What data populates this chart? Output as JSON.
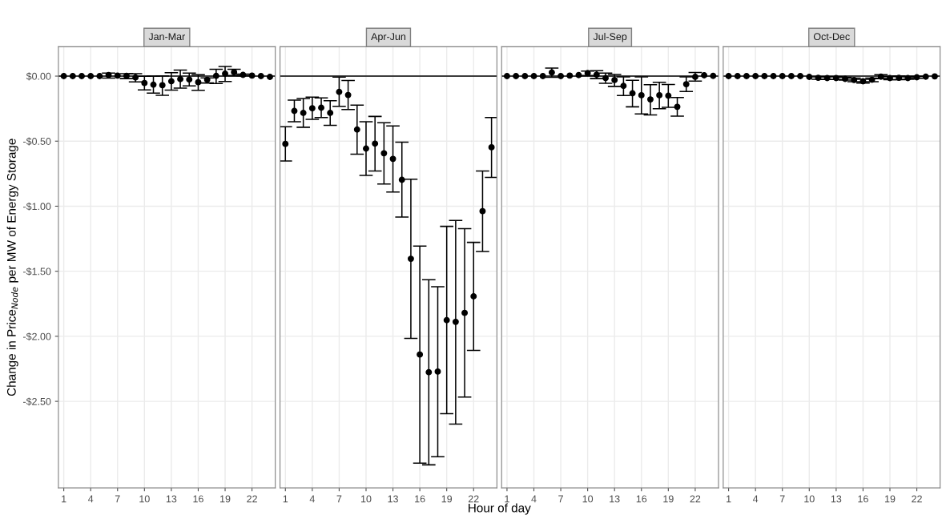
{
  "chart_data": [
    {
      "type": "scatter",
      "title": "Jan-Mar",
      "ylabel": "Change in Price$_{Node}$ per MW of Energy Storage",
      "x": [
        1,
        2,
        3,
        4,
        5,
        6,
        7,
        8,
        9,
        10,
        11,
        12,
        13,
        14,
        15,
        16,
        17,
        18,
        19,
        20,
        21,
        22,
        23,
        24
      ],
      "series": [
        {
          "color": "#000000",
          "values": [
            0,
            0,
            0,
            0,
            0,
            0.008,
            0.004,
            0.002,
            -0.011,
            -0.053,
            -0.066,
            -0.07,
            -0.04,
            -0.023,
            -0.026,
            -0.047,
            -0.028,
            0.002,
            0.019,
            0.03,
            0.009,
            0.004,
            0,
            -0.006
          ],
          "errors": [
            null,
            null,
            null,
            null,
            null,
            [
              -0.015,
              0.023
            ],
            null,
            [
              -0.019,
              0.019
            ],
            [
              -0.045,
              0.019
            ],
            [
              -0.106,
              -0.002
            ],
            [
              -0.13,
              0
            ],
            [
              -0.147,
              0.002
            ],
            [
              -0.108,
              0.026
            ],
            [
              -0.092,
              0.047
            ],
            [
              -0.075,
              0.023
            ],
            [
              -0.109,
              0.011
            ],
            [
              -0.053,
              -0.013
            ],
            [
              -0.057,
              0.053
            ],
            [
              -0.042,
              0.074
            ],
            [
              0.004,
              0.053
            ],
            [
              0.004,
              0.015
            ],
            null,
            null,
            null
          ]
        }
      ],
      "xlim": [
        0.4,
        24.6
      ],
      "xticks": [
        1,
        4,
        7,
        10,
        13,
        16,
        19,
        22
      ],
      "ylim": [
        -3.165,
        0.226
      ],
      "yticks": [
        {
          "value": 0,
          "label": "$0.00"
        },
        {
          "value": -0.5,
          "label": "-$0.50"
        },
        {
          "value": -1,
          "label": "-$1.00"
        },
        {
          "value": -1.5,
          "label": "-$1.50"
        },
        {
          "value": -2,
          "label": "-$2.00"
        },
        {
          "value": -2.5,
          "label": "-$2.50"
        }
      ],
      "ref_lines": [
        {
          "axis": "y",
          "value": 0,
          "color": "#000000"
        }
      ],
      "grid": true,
      "marker": "circle",
      "legend": false
    },
    {
      "type": "scatter",
      "title": "Apr-Jun",
      "xlabel": "Hour of day",
      "x": [
        1,
        2,
        3,
        4,
        5,
        6,
        7,
        8,
        9,
        10,
        11,
        12,
        13,
        14,
        15,
        16,
        17,
        18,
        19,
        20,
        21,
        22,
        23,
        24
      ],
      "series": [
        {
          "color": "#000000",
          "values": [
            -0.521,
            -0.268,
            -0.283,
            -0.247,
            -0.243,
            -0.283,
            -0.121,
            -0.145,
            -0.411,
            -0.557,
            -0.519,
            -0.593,
            -0.636,
            -0.797,
            -1.404,
            -2.14,
            -2.276,
            -2.271,
            -1.876,
            -1.889,
            -1.82,
            -1.693,
            -1.038,
            -0.547
          ],
          "errors": [
            [
              -0.653,
              -0.389
            ],
            [
              -0.351,
              -0.185
            ],
            [
              -0.393,
              -0.172
            ],
            [
              -0.332,
              -0.162
            ],
            [
              -0.319,
              -0.168
            ],
            [
              -0.379,
              -0.189
            ],
            [
              -0.232,
              -0.008
            ],
            [
              -0.257,
              -0.034
            ],
            [
              -0.6,
              -0.223
            ],
            [
              -0.763,
              -0.351
            ],
            [
              -0.729,
              -0.31
            ],
            [
              -0.829,
              -0.359
            ],
            [
              -0.891,
              -0.383
            ],
            [
              -1.083,
              -0.508
            ],
            [
              -2.016,
              -0.793
            ],
            [
              -2.975,
              -1.306
            ],
            [
              -2.988,
              -1.565
            ],
            [
              -2.926,
              -1.619
            ],
            [
              -2.595,
              -1.155
            ],
            [
              -2.675,
              -1.11
            ],
            [
              -2.467,
              -1.172
            ],
            [
              -2.108,
              -1.278
            ],
            [
              -1.348,
              -0.73
            ],
            [
              -0.778,
              -0.319
            ]
          ]
        }
      ],
      "xlim": [
        0.4,
        24.6
      ],
      "xticks": [
        1,
        4,
        7,
        10,
        13,
        16,
        19,
        22
      ],
      "ylim": [
        -3.165,
        0.226
      ],
      "yticks": [
        0,
        -0.5,
        -1,
        -1.5,
        -2,
        -2.5
      ],
      "tick_labels": "x",
      "ref_lines": [
        {
          "axis": "y",
          "value": 0,
          "color": "#000000"
        }
      ],
      "grid": true,
      "marker": "circle",
      "legend": false
    },
    {
      "type": "scatter",
      "title": "Jul-Sep",
      "x": [
        1,
        2,
        3,
        4,
        5,
        6,
        7,
        8,
        9,
        10,
        11,
        12,
        13,
        14,
        15,
        16,
        17,
        18,
        19,
        20,
        21,
        22,
        23,
        24
      ],
      "series": [
        {
          "color": "#000000",
          "values": [
            0,
            0,
            0,
            0,
            0,
            0.028,
            0,
            0.004,
            0.008,
            0.023,
            0.011,
            -0.015,
            -0.03,
            -0.075,
            -0.132,
            -0.147,
            -0.179,
            -0.147,
            -0.151,
            -0.236,
            -0.062,
            -0.006,
            0.006,
            0.002
          ],
          "errors": [
            null,
            null,
            null,
            null,
            null,
            [
              -0.009,
              0.062
            ],
            null,
            null,
            null,
            [
              0.004,
              0.038
            ],
            [
              -0.019,
              0.042
            ],
            [
              -0.055,
              0.023
            ],
            [
              -0.079,
              0.013
            ],
            [
              -0.149,
              -0.006
            ],
            [
              -0.236,
              -0.032
            ],
            [
              -0.291,
              -0.006
            ],
            [
              -0.298,
              -0.066
            ],
            [
              -0.251,
              -0.047
            ],
            [
              -0.24,
              -0.064
            ],
            [
              -0.308,
              -0.164
            ],
            [
              -0.119,
              -0.006
            ],
            [
              -0.038,
              0.028
            ],
            null,
            null
          ]
        }
      ],
      "xlim": [
        0.4,
        24.6
      ],
      "xticks": [
        1,
        4,
        7,
        10,
        13,
        16,
        19,
        22
      ],
      "ylim": [
        -3.165,
        0.226
      ],
      "yticks": [
        0,
        -0.5,
        -1,
        -1.5,
        -2,
        -2.5
      ],
      "tick_labels": "x",
      "ref_lines": [
        {
          "axis": "y",
          "value": 0,
          "color": "#000000"
        }
      ],
      "grid": true,
      "marker": "circle",
      "legend": false
    },
    {
      "type": "scatter",
      "title": "Oct-Dec",
      "x": [
        1,
        2,
        3,
        4,
        5,
        6,
        7,
        8,
        9,
        10,
        11,
        12,
        13,
        14,
        15,
        16,
        17,
        18,
        19,
        20,
        21,
        22,
        23,
        24
      ],
      "series": [
        {
          "color": "#000000",
          "values": [
            0,
            0,
            0,
            0,
            0,
            0,
            0,
            0,
            0,
            -0.006,
            -0.013,
            -0.015,
            -0.015,
            -0.021,
            -0.03,
            -0.04,
            -0.028,
            -0.004,
            -0.015,
            -0.013,
            -0.015,
            -0.009,
            -0.004,
            -0.002
          ],
          "errors": [
            null,
            null,
            null,
            null,
            null,
            null,
            null,
            null,
            null,
            null,
            [
              -0.025,
              -0.006
            ],
            [
              -0.026,
              -0.004
            ],
            [
              -0.026,
              -0.004
            ],
            [
              -0.03,
              -0.009
            ],
            [
              -0.043,
              -0.015
            ],
            [
              -0.053,
              -0.025
            ],
            [
              -0.043,
              -0.015
            ],
            [
              -0.019,
              0.011
            ],
            [
              -0.028,
              -0.004
            ],
            [
              -0.028,
              0.002
            ],
            [
              -0.024,
              -0.006
            ],
            [
              -0.016,
              -0.002
            ],
            null,
            null
          ]
        }
      ],
      "xlim": [
        0.4,
        24.6
      ],
      "xticks": [
        1,
        4,
        7,
        10,
        13,
        16,
        19,
        22
      ],
      "ylim": [
        -3.165,
        0.226
      ],
      "yticks": [
        0,
        -0.5,
        -1,
        -1.5,
        -2,
        -2.5
      ],
      "tick_labels": "x",
      "ref_lines": [
        {
          "axis": "y",
          "value": 0,
          "color": "#000000"
        }
      ],
      "grid": true,
      "marker": "circle",
      "legend": false
    }
  ]
}
